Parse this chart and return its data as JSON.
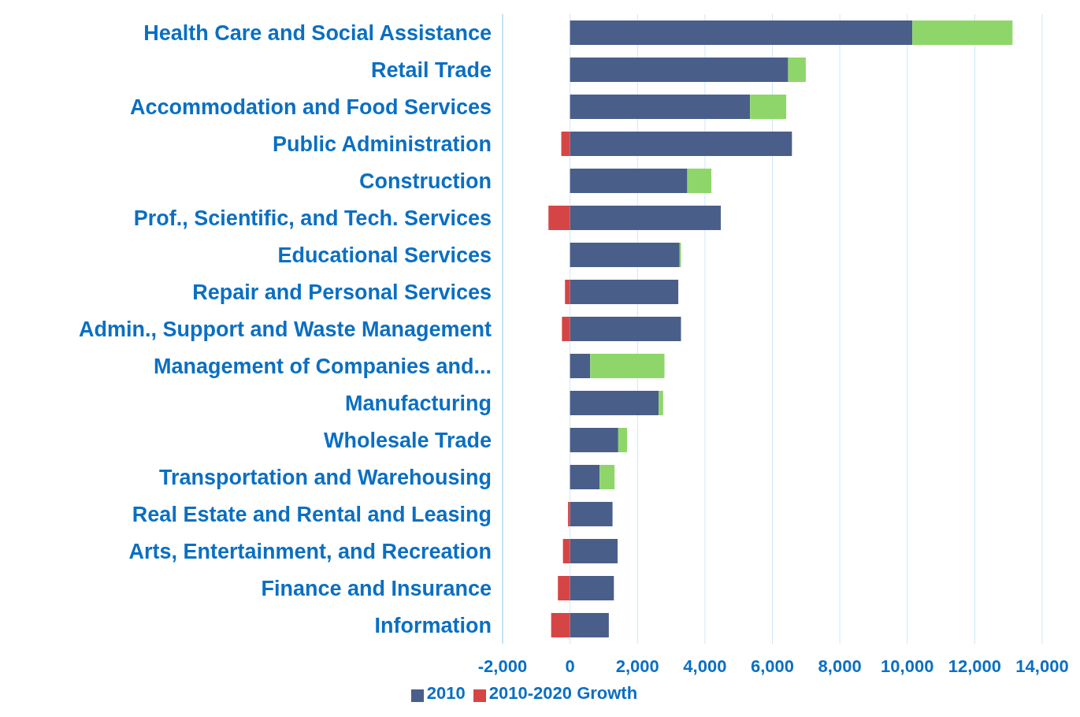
{
  "chart_data": {
    "type": "bar",
    "orientation": "horizontal",
    "stacked": true,
    "categories": [
      "Health Care and Social Assistance",
      "Retail Trade",
      "Accommodation and Food Services",
      "Public Administration",
      "Construction",
      "Prof., Scientific, and Tech. Services",
      "Educational Services",
      "Repair and Personal Services",
      "Admin., Support and Waste Management",
      "Management of Companies and...",
      "Manufacturing",
      "Wholesale Trade",
      "Transportation and Warehousing",
      "Real Estate and Rental and Leasing",
      "Arts, Entertainment, and Recreation",
      "Finance and Insurance",
      "Information"
    ],
    "series": [
      {
        "name": "2010",
        "color": "#4a5e8a",
        "values": [
          10150,
          6470,
          5340,
          6580,
          3480,
          4470,
          3250,
          3210,
          3290,
          600,
          2630,
          1430,
          880,
          1260,
          1410,
          1300,
          1150
        ]
      },
      {
        "name": "2010-2020 Growth",
        "color": "#d64545",
        "values": [
          2970,
          520,
          1070,
          -260,
          710,
          -640,
          40,
          -150,
          -240,
          2200,
          130,
          260,
          440,
          -60,
          -210,
          -360,
          -560
        ],
        "colors": [
          "#8fd66a",
          "#8fd66a",
          "#8fd66a",
          "#d64545",
          "#8fd66a",
          "#d64545",
          "#8fd66a",
          "#d64545",
          "#d64545",
          "#8fd66a",
          "#8fd66a",
          "#8fd66a",
          "#8fd66a",
          "#d64545",
          "#d64545",
          "#d64545",
          "#d64545"
        ]
      }
    ],
    "xlim": [
      -2000,
      14000
    ],
    "xticks": [
      {
        "value": -2000,
        "label": "-2,000"
      },
      0,
      {
        "value": 2000,
        "label": "2,000"
      },
      {
        "value": 4000,
        "label": "4,000"
      },
      {
        "value": 6000,
        "label": "6,000"
      },
      {
        "value": 8000,
        "label": "8,000"
      },
      {
        "value": 10000,
        "label": "10,000"
      },
      {
        "value": 12000,
        "label": "12,000"
      },
      {
        "value": 14000,
        "label": "14,000"
      }
    ],
    "grid": "x",
    "legend": "bottom"
  }
}
